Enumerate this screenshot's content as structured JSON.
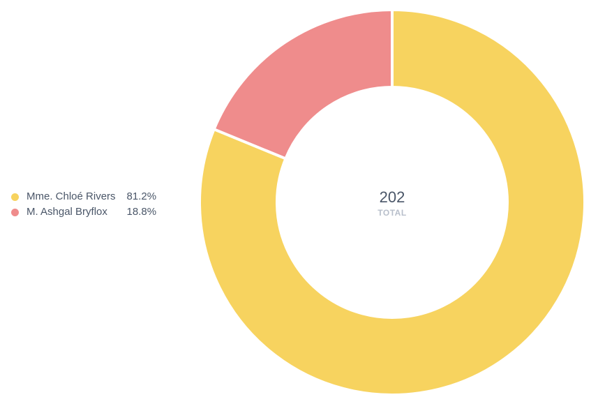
{
  "chart_data": {
    "type": "pie",
    "style": "donut",
    "slices": [
      {
        "label": "Mme. Chloé Rivers",
        "percent_label": "81.2%",
        "value": 81.2,
        "color": "#f7d35f"
      },
      {
        "label": "M. Ashgal Bryflox",
        "percent_label": "18.8%",
        "value": 18.8,
        "color": "#ef8c8c"
      }
    ],
    "total_value": "202",
    "total_label": "TOTAL",
    "legend_position": "left"
  }
}
